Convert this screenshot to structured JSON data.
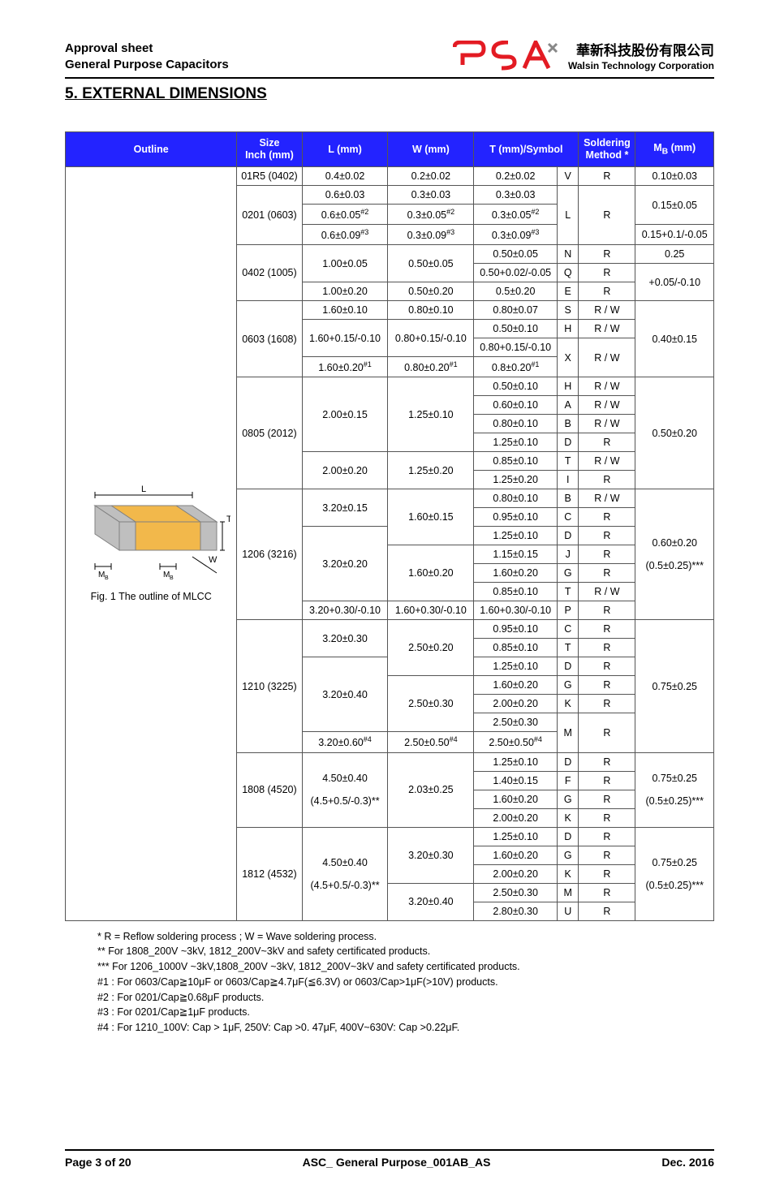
{
  "header": {
    "line1": "Approval sheet",
    "line2": "General Purpose Capacitors",
    "logo_color1": "#e31b23",
    "logo_color2": "#888888",
    "corp_cn": "華新科技股份有限公司",
    "corp_en": "Walsin Technology Corporation"
  },
  "section_title": "5. EXTERNAL DIMENSIONS",
  "columns": {
    "outline": "Outline",
    "size": "Size",
    "size_sub": "Inch (mm)",
    "L": "L (mm)",
    "W": "W (mm)",
    "T": "T (mm)/Symbol",
    "solder": "Soldering",
    "solder_sub": "Method *",
    "MB": "M",
    "MB_sub": "B",
    "MB_unit": " (mm)"
  },
  "outline_caption": "Fig. 1 The outline of MLCC",
  "outline_labels": {
    "L": "L",
    "T": "T",
    "W": "W",
    "MB": "M",
    "MB_sub": "B"
  },
  "rows": [
    {
      "size": "01R5 (0402)",
      "L": "0.4±0.02",
      "W": "0.2±0.02",
      "T": "0.2±0.02",
      "sym": "V",
      "sol": "R",
      "MB": "0.10±0.03"
    },
    {
      "size_span": 3,
      "size": "0201 (0603)",
      "L": "0.6±0.03",
      "W": "0.3±0.03",
      "T": "0.3±0.03",
      "sym": "L",
      "sym_span": 3,
      "sol": "R",
      "sol_span": 3,
      "MB": "0.15±0.05",
      "MB_span": 2
    },
    {
      "L": "0.6±0.05",
      "L_sup": "#2",
      "W": "0.3±0.05",
      "W_sup": "#2",
      "T": "0.3±0.05",
      "T_sup": "#2"
    },
    {
      "L": "0.6±0.09",
      "L_sup": "#3",
      "W": "0.3±0.09",
      "W_sup": "#3",
      "T": "0.3±0.09",
      "T_sup": "#3",
      "MB": "0.15+0.1/-0.05"
    },
    {
      "size_span": 3,
      "size": "0402 (1005)",
      "L": "1.00±0.05",
      "L_span": 1,
      "W": "0.50±0.05",
      "W_span": 1,
      "T": "0.50±0.05",
      "sym": "N",
      "sol": "R",
      "MB": "0.25"
    },
    {
      "L_null": true,
      "W_null": true,
      "T": "0.50+0.02/-0.05",
      "sym": "Q",
      "sol": "R",
      "MB": "+0.05/-0.10",
      "MB_span": 2
    },
    {
      "L": "1.00±0.20",
      "W": "0.50±0.20",
      "T": "0.5±0.20",
      "sym": "E",
      "sol": "R"
    },
    {
      "size_span": 4,
      "size": "0603 (1608)",
      "L": "1.60±0.10",
      "W": "0.80±0.10",
      "T": "0.80±0.07",
      "sym": "S",
      "sol": "R / W",
      "MB": "0.40±0.15",
      "MB_span": 4
    },
    {
      "L": "1.60+0.15/-0.10",
      "L_span": 2,
      "W": "0.80+0.15/-0.10",
      "W_span": 2,
      "T": "0.50±0.10",
      "sym": "H",
      "sol": "R / W"
    },
    {
      "T": "0.80+0.15/-0.10",
      "sym": "X",
      "sym_span": 2,
      "sol": "R / W",
      "sol_span": 2
    },
    {
      "L": "1.60±0.20",
      "L_sup": "#1",
      "W": "0.80±0.20",
      "W_sup": "#1",
      "T": "0.8±0.20",
      "T_sup": "#1"
    },
    {
      "size_span": 6,
      "size": "0805 (2012)",
      "L": "2.00±0.15",
      "L_span": 4,
      "W": "1.25±0.10",
      "W_span": 4,
      "T": "0.50±0.10",
      "sym": "H",
      "sol": "R / W",
      "MB": "0.50±0.20",
      "MB_span": 6
    },
    {
      "T": "0.60±0.10",
      "sym": "A",
      "sol": "R / W"
    },
    {
      "T": "0.80±0.10",
      "sym": "B",
      "sol": "R / W"
    },
    {
      "T": "1.25±0.10",
      "sym": "D",
      "sol": "R"
    },
    {
      "L": "2.00±0.20",
      "L_span": 2,
      "W": "1.25±0.20",
      "W_span": 2,
      "T": "0.85±0.10",
      "sym": "T",
      "sol": "R / W"
    },
    {
      "T": "1.25±0.20",
      "sym": "I",
      "sol": "R"
    },
    {
      "size_span": 7,
      "size": "1206 (3216)",
      "L": "3.20±0.15",
      "L_span": 2,
      "W": "1.60±0.15",
      "W_span": 3,
      "T": "0.80±0.10",
      "sym": "B",
      "sol": "R / W",
      "MB_html": "0.60±0.20<br><br>(0.5±0.25)***",
      "MB_span": 7
    },
    {
      "T": "0.95±0.10",
      "sym": "C",
      "sol": "R"
    },
    {
      "L": "3.20±0.20",
      "L_span": 4,
      "T": "1.25±0.10",
      "sym": "D",
      "sol": "R"
    },
    {
      "W": "1.60±0.20",
      "W_span": 3,
      "T": "1.15±0.15",
      "sym": "J",
      "sol": "R"
    },
    {
      "T": "1.60±0.20",
      "sym": "G",
      "sol": "R"
    },
    {
      "T": "0.85±0.10",
      "sym": "T",
      "sol": "R / W"
    },
    {
      "L": "3.20+0.30/-0.10",
      "W": "1.60+0.30/-0.10",
      "T": "1.60+0.30/-0.10",
      "sym": "P",
      "sol": "R"
    },
    {
      "size_span": 7,
      "size": "1210 (3225)",
      "L": "3.20±0.30",
      "L_span": 2,
      "W": "2.50±0.20",
      "W_span": 3,
      "T": "0.95±0.10",
      "sym": "C",
      "sol": "R",
      "MB": "0.75±0.25",
      "MB_span": 7
    },
    {
      "T": "0.85±0.10",
      "sym": "T",
      "sol": "R"
    },
    {
      "L": "3.20±0.40",
      "L_span": 4,
      "T": "1.25±0.10",
      "sym": "D",
      "sol": "R"
    },
    {
      "W": "2.50±0.30",
      "W_span": 3,
      "T": "1.60±0.20",
      "sym": "G",
      "sol": "R"
    },
    {
      "T": "2.00±0.20",
      "sym": "K",
      "sol": "R"
    },
    {
      "T": "2.50±0.30",
      "sym": "M",
      "sym_span": 2,
      "sol": "R",
      "sol_span": 2
    },
    {
      "L": "3.20±0.60",
      "L_sup": "#4",
      "W": "2.50±0.50",
      "W_sup": "#4",
      "T": "2.50±0.50",
      "T_sup": "#4"
    },
    {
      "size_span": 4,
      "size": "1808 (4520)",
      "L_html": "4.50±0.40<br><br>(4.5+0.5/-0.3)**",
      "L_span": 4,
      "W": "2.03±0.25",
      "W_span": 4,
      "T": "1.25±0.10",
      "sym": "D",
      "sol": "R",
      "MB_html": "0.75±0.25<br><br>(0.5±0.25)***",
      "MB_span": 4
    },
    {
      "T": "1.40±0.15",
      "sym": "F",
      "sol": "R"
    },
    {
      "T": "1.60±0.20",
      "sym": "G",
      "sol": "R"
    },
    {
      "T": "2.00±0.20",
      "sym": "K",
      "sol": "R"
    },
    {
      "size_span": 5,
      "size": "1812 (4532)",
      "L_html": "4.50±0.40<br><br>(4.5+0.5/-0.3)**",
      "L_span": 5,
      "W": "3.20±0.30",
      "W_span": 3,
      "T": "1.25±0.10",
      "sym": "D",
      "sol": "R",
      "MB_html": "0.75±0.25<br><br>(0.5±0.25)***",
      "MB_span": 5
    },
    {
      "T": "1.60±0.20",
      "sym": "G",
      "sol": "R"
    },
    {
      "T": "2.00±0.20",
      "sym": "K",
      "sol": "R"
    },
    {
      "W": "3.20±0.40",
      "W_span": 2,
      "T": "2.50±0.30",
      "sym": "M",
      "sol": "R"
    },
    {
      "T": "2.80±0.30",
      "sym": "U",
      "sol": "R"
    }
  ],
  "lw_merge_0402": {
    "L": "1.00±0.05",
    "W": "0.50±0.05"
  },
  "notes": [
    "* R = Reflow soldering process ; W = Wave soldering process.",
    "** For 1808_200V ~3kV, 1812_200V~3kV and safety certificated products.",
    "*** For 1206_1000V ~3kV,1808_200V ~3kV, 1812_200V~3kV and safety certificated products.",
    "#1 : For 0603/Cap≧10μF or 0603/Cap≧4.7μF(≦6.3V) or 0603/Cap>1μF(>10V) products.",
    "#2 : For 0201/Cap≧0.68μF products.",
    "#3 : For 0201/Cap≧1μF products.",
    "#4 : For 1210_100V: Cap > 1μF, 250V: Cap >0. 47μF, 400V~630V: Cap >0.22μF."
  ],
  "footer": {
    "page": "Page 3 of 20",
    "doc": "ASC_ General Purpose_001AB_AS",
    "date": "Dec. 2016"
  },
  "colors": {
    "header_bg": "#2323ff",
    "fig_body": "#f2b84b",
    "fig_term": "#bfbfbf",
    "fig_line": "#808080"
  }
}
